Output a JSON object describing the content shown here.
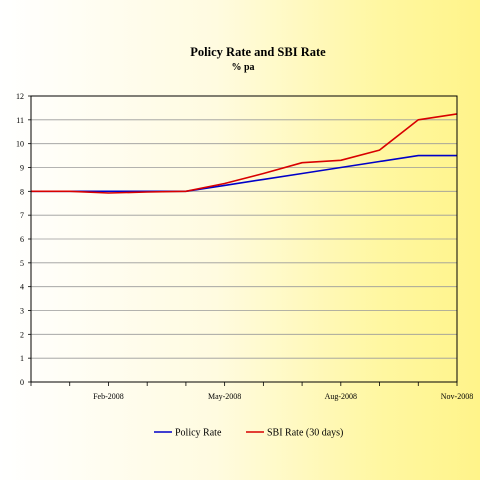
{
  "chart_data": {
    "type": "line",
    "title": "Policy Rate and SBI Rate",
    "subtitle": "% pa",
    "xlabel": "",
    "ylabel": "",
    "x": [
      0,
      1,
      2,
      3,
      4,
      5,
      6,
      7,
      8,
      9,
      10,
      11
    ],
    "x_tick_labels": [
      {
        "index": 2,
        "label": "Feb-2008"
      },
      {
        "index": 5,
        "label": "May-2008"
      },
      {
        "index": 8,
        "label": "Aug-2008"
      },
      {
        "index": 11,
        "label": "Nov-2008"
      }
    ],
    "ylim": [
      0,
      12
    ],
    "yticks": [
      0,
      1,
      2,
      3,
      4,
      5,
      6,
      7,
      8,
      9,
      10,
      11,
      12
    ],
    "grid": true,
    "legend_position": "bottom",
    "series": [
      {
        "name": "Policy Rate",
        "color": "#0000c8",
        "values": [
          8.0,
          8.0,
          8.0,
          8.0,
          8.0,
          8.25,
          8.5,
          8.75,
          9.0,
          9.25,
          9.5,
          9.5
        ]
      },
      {
        "name": "SBI Rate (30 days)",
        "color": "#d80000",
        "values": [
          8.0,
          8.0,
          7.93,
          7.97,
          8.0,
          8.33,
          8.75,
          9.2,
          9.3,
          9.73,
          11.0,
          11.25
        ]
      }
    ]
  }
}
